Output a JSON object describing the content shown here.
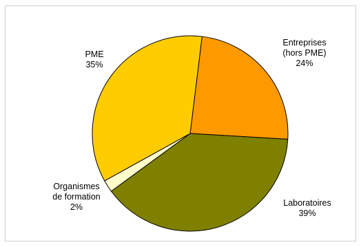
{
  "chart_data": {
    "type": "pie",
    "title": "",
    "slices": [
      {
        "label": [
          "Entreprises",
          "(hors PME)"
        ],
        "value": 24,
        "value_label": "24%",
        "color": "#ff9900"
      },
      {
        "label": [
          "Laboratoires"
        ],
        "value": 39,
        "value_label": "39%",
        "color": "#808000"
      },
      {
        "label": [
          "Organismes",
          "de formation"
        ],
        "value": 2,
        "value_label": "2%",
        "color": "#ffffcc"
      },
      {
        "label": [
          "PME"
        ],
        "value": 35,
        "value_label": "35%",
        "color": "#ffcc00"
      }
    ],
    "start_angle_deg": 7,
    "direction": "clockwise",
    "legend": "none",
    "border": "#d0d0d0"
  }
}
